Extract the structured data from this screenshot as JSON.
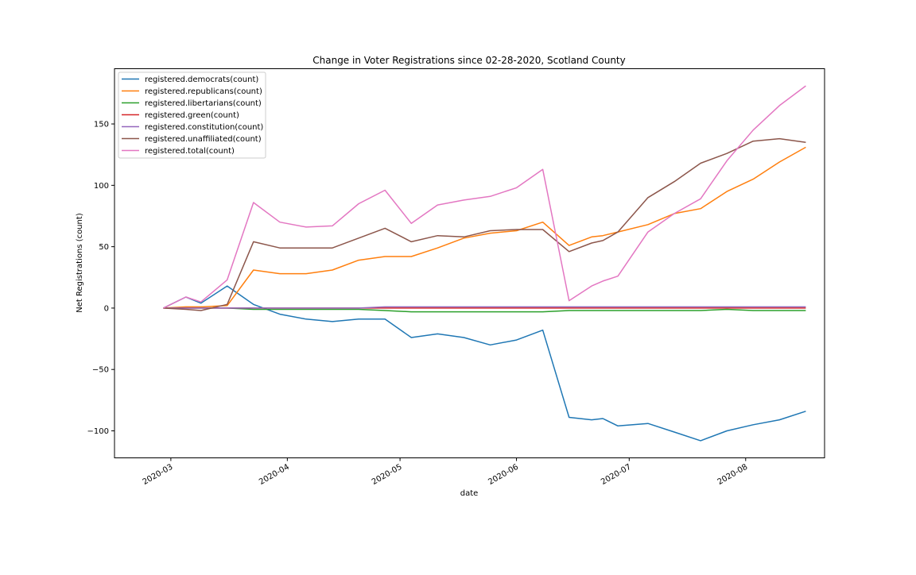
{
  "chart_data": {
    "type": "line",
    "title": "Change in Voter Registrations since 02-28-2020, Scotland County",
    "xlabel": "date",
    "ylabel": "Net Registrations (count)",
    "x_type": "date",
    "x_ticks": [
      {
        "date": "2020-03-01",
        "label": "2020-03"
      },
      {
        "date": "2020-04-01",
        "label": "2020-04"
      },
      {
        "date": "2020-05-01",
        "label": "2020-05"
      },
      {
        "date": "2020-06-01",
        "label": "2020-06"
      },
      {
        "date": "2020-07-01",
        "label": "2020-07"
      },
      {
        "date": "2020-08-01",
        "label": "2020-08"
      }
    ],
    "xlim": [
      "2020-02-15",
      "2020-08-22"
    ],
    "y_ticks": [
      -100,
      -50,
      0,
      50,
      100,
      150
    ],
    "y_tick_labels": [
      "−100",
      "−50",
      "0",
      "50",
      "100",
      "150"
    ],
    "ylim": [
      -122,
      195
    ],
    "grid": false,
    "legend_position": "upper-left",
    "x": [
      "2020-02-28",
      "2020-03-05",
      "2020-03-09",
      "2020-03-16",
      "2020-03-23",
      "2020-03-30",
      "2020-04-06",
      "2020-04-13",
      "2020-04-20",
      "2020-04-27",
      "2020-05-04",
      "2020-05-11",
      "2020-05-18",
      "2020-05-25",
      "2020-06-01",
      "2020-06-08",
      "2020-06-15",
      "2020-06-21",
      "2020-06-24",
      "2020-06-28",
      "2020-07-06",
      "2020-07-13",
      "2020-07-20",
      "2020-07-27",
      "2020-08-03",
      "2020-08-10",
      "2020-08-17"
    ],
    "series": [
      {
        "name": "registered.democrats(count)",
        "color": "#1f77b4",
        "values": [
          0,
          9,
          4,
          18,
          3,
          -5,
          -9,
          -11,
          -9,
          -9,
          -24,
          -21,
          -24,
          -30,
          -26,
          -18,
          -89,
          -91,
          -90,
          -96,
          -94,
          -101,
          -108,
          -100,
          -95,
          -91,
          -84
        ]
      },
      {
        "name": "registered.republicans(count)",
        "color": "#ff7f0e",
        "values": [
          0,
          1,
          1,
          2,
          31,
          28,
          28,
          31,
          39,
          42,
          42,
          49,
          57,
          61,
          63,
          70,
          51,
          58,
          59,
          62,
          68,
          77,
          81,
          95,
          105,
          119,
          131
        ]
      },
      {
        "name": "registered.libertarians(count)",
        "color": "#2ca02c",
        "values": [
          0,
          0,
          0,
          0,
          -1,
          -1,
          -1,
          -1,
          -1,
          -2,
          -3,
          -3,
          -3,
          -3,
          -3,
          -3,
          -2,
          -2,
          -2,
          -2,
          -2,
          -2,
          -2,
          -1,
          -2,
          -2,
          -2
        ]
      },
      {
        "name": "registered.green(count)",
        "color": "#d62728",
        "values": [
          0,
          0,
          0,
          0,
          0,
          0,
          0,
          0,
          0,
          0,
          0,
          0,
          0,
          0,
          0,
          0,
          0,
          0,
          0,
          0,
          0,
          0,
          0,
          0,
          0,
          0,
          0
        ]
      },
      {
        "name": "registered.constitution(count)",
        "color": "#9467bd",
        "values": [
          0,
          0,
          0,
          0,
          0,
          0,
          0,
          0,
          0,
          1,
          1,
          1,
          1,
          1,
          1,
          1,
          1,
          1,
          1,
          1,
          1,
          1,
          1,
          1,
          1,
          1,
          1
        ]
      },
      {
        "name": "registered.unaffiliated(count)",
        "color": "#8c564b",
        "values": [
          0,
          -1,
          -2,
          3,
          54,
          49,
          49,
          49,
          57,
          65,
          54,
          59,
          58,
          63,
          64,
          64,
          46,
          53,
          55,
          62,
          90,
          103,
          118,
          126,
          136,
          138,
          135
        ]
      },
      {
        "name": "registered.total(count)",
        "color": "#e377c2",
        "values": [
          0,
          9,
          5,
          23,
          86,
          70,
          66,
          67,
          85,
          96,
          69,
          84,
          88,
          91,
          98,
          113,
          6,
          18,
          22,
          26,
          62,
          77,
          89,
          120,
          145,
          165,
          181
        ]
      }
    ]
  }
}
